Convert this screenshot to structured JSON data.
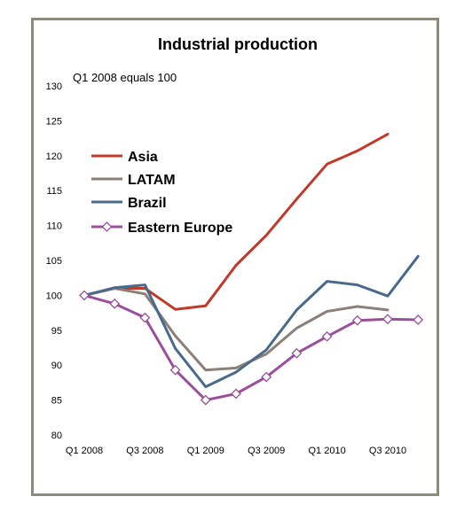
{
  "chart_data": {
    "type": "line",
    "title": "Industrial production",
    "subtitle": "Q1 2008 equals 100",
    "xlabel": "",
    "ylabel": "",
    "ylim": [
      80,
      130
    ],
    "yticks": [
      80,
      85,
      90,
      95,
      100,
      105,
      110,
      115,
      120,
      125,
      130
    ],
    "x": [
      "Q1 2008",
      "Q2 2008",
      "Q3 2008",
      "Q4 2008",
      "Q1 2009",
      "Q2 2009",
      "Q3 2009",
      "Q4 2009",
      "Q1 2010",
      "Q2 2010",
      "Q3 2010",
      "Q4 2010"
    ],
    "xtick_labels": [
      "Q1 2008",
      "Q3 2008",
      "Q1 2009",
      "Q3 2009",
      "Q1 2010",
      "Q3 2010"
    ],
    "xtick_indices": [
      0,
      2,
      4,
      6,
      8,
      10
    ],
    "grid": false,
    "legend": "upper-left",
    "series": [
      {
        "name": "Asia",
        "color": "#c0392b",
        "marker": "none",
        "values": [
          100,
          101,
          101,
          98,
          98.5,
          104.3,
          108.6,
          113.8,
          118.8,
          120.7,
          123.1,
          null
        ]
      },
      {
        "name": "LATAM",
        "color": "#8c7f78",
        "marker": "none",
        "values": [
          100,
          101,
          100.2,
          94.2,
          89.3,
          89.6,
          91.6,
          95.3,
          97.7,
          98.4,
          97.9,
          null
        ]
      },
      {
        "name": "Brazil",
        "color": "#4a6a8c",
        "marker": "none",
        "values": [
          100,
          101.1,
          101.5,
          92.4,
          86.9,
          89,
          92.2,
          97.9,
          102,
          101.5,
          99.9,
          105.6
        ]
      },
      {
        "name": "Eastern Europe",
        "color": "#9b4f9b",
        "marker": "diamond",
        "values": [
          100,
          98.8,
          96.8,
          89.3,
          85,
          85.9,
          88.3,
          91.7,
          94.1,
          96.4,
          96.6,
          96.5
        ]
      }
    ]
  }
}
